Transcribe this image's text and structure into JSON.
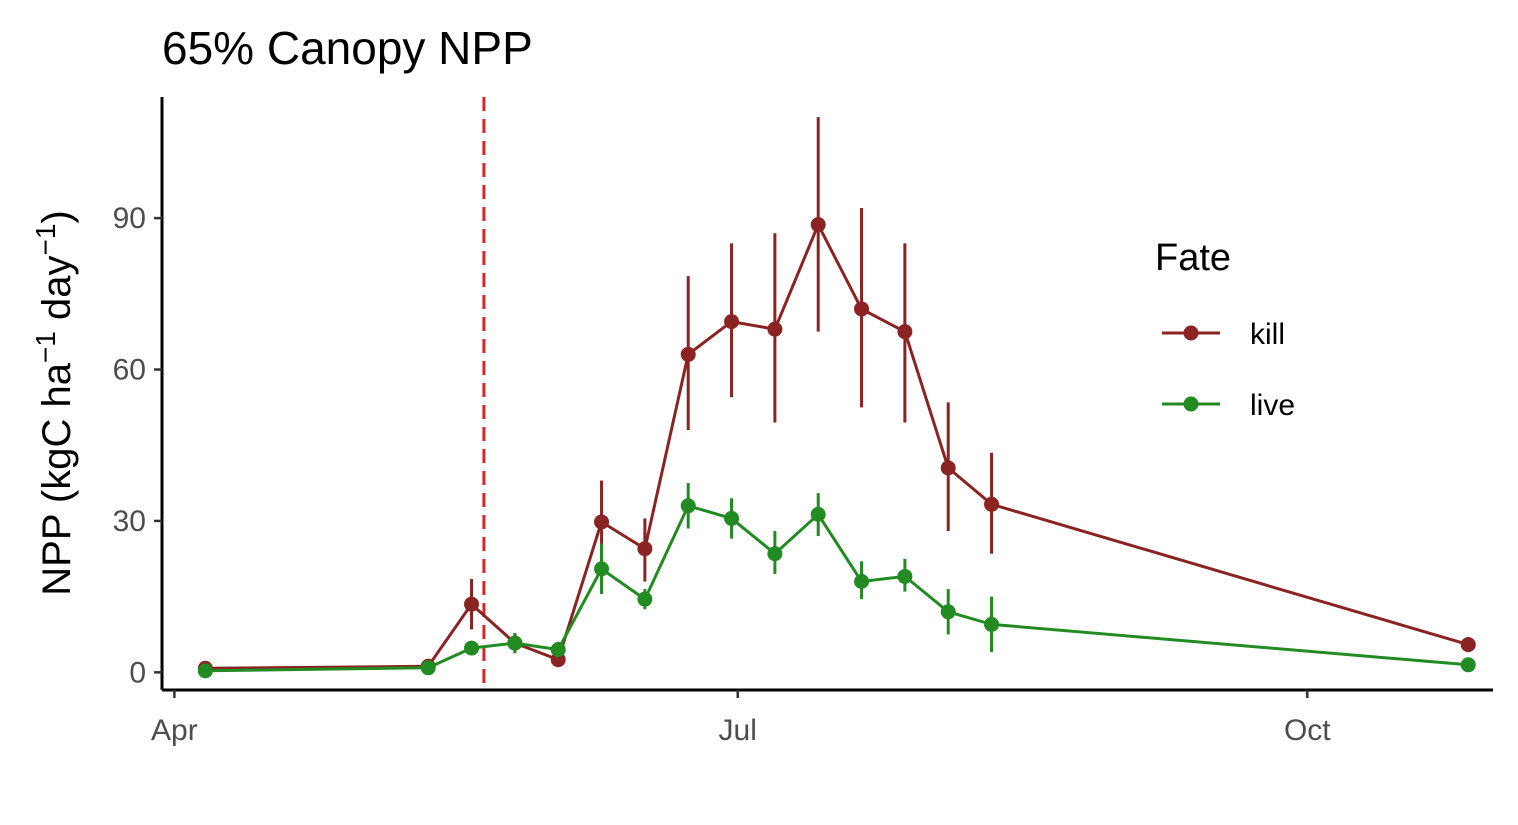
{
  "chart_data": {
    "type": "line",
    "title": "65% Canopy NPP",
    "ylabel": {
      "prefix": "NPP (kgC ha",
      "middle": " day",
      "suffix": ")",
      "exponent": "−1"
    },
    "xlabel": "",
    "ylim": [
      -3.5,
      114
    ],
    "xlim": [
      "2021-03-30",
      "2021-10-31"
    ],
    "x_ticks": [
      {
        "date": "2021-04-01",
        "label": "Apr"
      },
      {
        "date": "2021-07-01",
        "label": "Jul"
      },
      {
        "date": "2021-10-01",
        "label": "Oct"
      }
    ],
    "y_ticks": [
      {
        "value": 0,
        "label": "0"
      },
      {
        "value": 30,
        "label": "30"
      },
      {
        "value": 60,
        "label": "60"
      },
      {
        "value": 90,
        "label": "90"
      }
    ],
    "reference_line": {
      "date": "2021-05-21",
      "color": "#d62728",
      "style": "dashed"
    },
    "legend": {
      "title": "Fate",
      "position": "right"
    },
    "grid": false,
    "series": [
      {
        "name": "kill",
        "color": "#8b2323",
        "points": [
          {
            "x": "2021-04-06",
            "y": 0.8,
            "lo": 0.3,
            "hi": 1.3
          },
          {
            "x": "2021-05-12",
            "y": 1.2,
            "lo": 0.6,
            "hi": 1.8
          },
          {
            "x": "2021-05-19",
            "y": 13.5,
            "lo": 8.5,
            "hi": 18.5
          },
          {
            "x": "2021-05-26",
            "y": 5.8,
            "lo": 3.8,
            "hi": 7.8
          },
          {
            "x": "2021-06-02",
            "y": 2.5,
            "lo": 1.5,
            "hi": 3.5
          },
          {
            "x": "2021-06-09",
            "y": 29.8,
            "lo": 21.5,
            "hi": 38.0
          },
          {
            "x": "2021-06-16",
            "y": 24.5,
            "lo": 18.0,
            "hi": 30.5
          },
          {
            "x": "2021-06-23",
            "y": 63.0,
            "lo": 48.0,
            "hi": 78.5
          },
          {
            "x": "2021-06-30",
            "y": 69.5,
            "lo": 54.5,
            "hi": 85.0
          },
          {
            "x": "2021-07-07",
            "y": 68.0,
            "lo": 49.5,
            "hi": 87.0
          },
          {
            "x": "2021-07-14",
            "y": 88.7,
            "lo": 67.5,
            "hi": 110.0
          },
          {
            "x": "2021-07-21",
            "y": 72.0,
            "lo": 52.5,
            "hi": 92.0
          },
          {
            "x": "2021-07-28",
            "y": 67.5,
            "lo": 49.5,
            "hi": 85.0
          },
          {
            "x": "2021-08-04",
            "y": 40.5,
            "lo": 28.0,
            "hi": 53.5
          },
          {
            "x": "2021-08-11",
            "y": 33.3,
            "lo": 23.5,
            "hi": 43.5
          },
          {
            "x": "2021-10-27",
            "y": 5.5,
            "lo": 4.0,
            "hi": 7.0
          }
        ]
      },
      {
        "name": "live",
        "color": "#228b22",
        "points": [
          {
            "x": "2021-04-06",
            "y": 0.3,
            "lo": -0.2,
            "hi": 0.8
          },
          {
            "x": "2021-05-12",
            "y": 0.9,
            "lo": 0.4,
            "hi": 1.4
          },
          {
            "x": "2021-05-19",
            "y": 4.8,
            "lo": 3.8,
            "hi": 5.8
          },
          {
            "x": "2021-05-26",
            "y": 5.8,
            "lo": 3.8,
            "hi": 7.8
          },
          {
            "x": "2021-06-02",
            "y": 4.5,
            "lo": 3.0,
            "hi": 6.0
          },
          {
            "x": "2021-06-09",
            "y": 20.5,
            "lo": 15.5,
            "hi": 25.5
          },
          {
            "x": "2021-06-16",
            "y": 14.5,
            "lo": 12.5,
            "hi": 16.5
          },
          {
            "x": "2021-06-23",
            "y": 33.0,
            "lo": 28.5,
            "hi": 37.5
          },
          {
            "x": "2021-06-30",
            "y": 30.5,
            "lo": 26.5,
            "hi": 34.5
          },
          {
            "x": "2021-07-07",
            "y": 23.5,
            "lo": 19.5,
            "hi": 28.0
          },
          {
            "x": "2021-07-14",
            "y": 31.3,
            "lo": 27.0,
            "hi": 35.5
          },
          {
            "x": "2021-07-21",
            "y": 18.0,
            "lo": 14.5,
            "hi": 22.0
          },
          {
            "x": "2021-07-28",
            "y": 19.0,
            "lo": 16.0,
            "hi": 22.5
          },
          {
            "x": "2021-08-04",
            "y": 12.0,
            "lo": 7.5,
            "hi": 16.5
          },
          {
            "x": "2021-08-11",
            "y": 9.5,
            "lo": 4.0,
            "hi": 15.0
          },
          {
            "x": "2021-10-27",
            "y": 1.5,
            "lo": 0.7,
            "hi": 2.3
          }
        ]
      }
    ]
  }
}
